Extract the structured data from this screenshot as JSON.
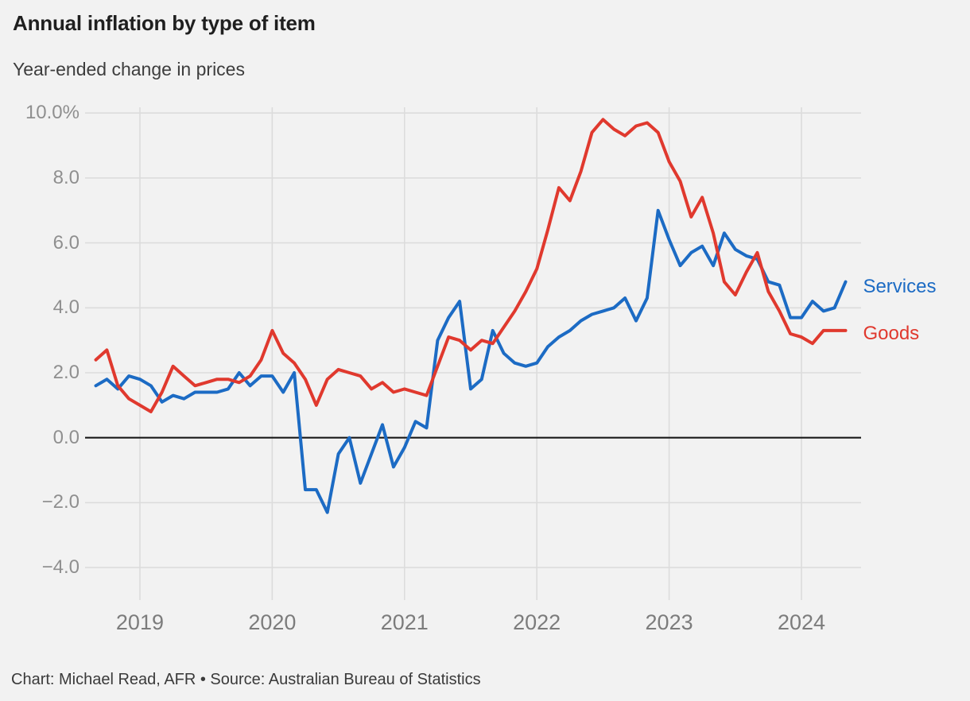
{
  "header": {
    "title": "Annual inflation by type of item",
    "subtitle": "Year-ended change in prices"
  },
  "footer": {
    "credit": "Chart: Michael Read, AFR • Source: Australian Bureau of Statistics"
  },
  "colors": {
    "background": "#f2f2f2",
    "grid": "#dcdcdc",
    "zero_line": "#1a1a1a",
    "services": "#1c6bc4",
    "goods": "#e0392e",
    "axis_text": "#8f8f8f"
  },
  "chart_data": {
    "type": "line",
    "title": "Annual inflation by type of item",
    "subtitle": "Year-ended change in prices",
    "x_unit": "month",
    "x_start": "2018-09",
    "x_end": "2024-05",
    "grid": true,
    "zero_line": true,
    "legend_position": "right-of-line-ends",
    "ylim": [
      -5,
      10
    ],
    "ytick_values": [
      10,
      8,
      6,
      4,
      2,
      0,
      -2,
      -4
    ],
    "ytick_labels": [
      "10.0%",
      "8.0",
      "6.0",
      "4.0",
      "2.0",
      "0.0",
      "−2.0",
      "−4.0"
    ],
    "xtick_labels": [
      "2019",
      "2020",
      "2021",
      "2022",
      "2023",
      "2024"
    ],
    "series": [
      {
        "name": "Services",
        "color": "#1c6bc4",
        "values": [
          1.6,
          1.8,
          1.5,
          1.9,
          1.8,
          1.6,
          1.1,
          1.3,
          1.2,
          1.4,
          1.4,
          1.4,
          1.5,
          2.0,
          1.6,
          1.9,
          1.9,
          1.4,
          2.0,
          -1.6,
          -1.6,
          -2.3,
          -0.5,
          0.0,
          -1.4,
          -0.5,
          0.4,
          -0.9,
          -0.3,
          0.5,
          0.3,
          3.0,
          3.7,
          4.2,
          1.5,
          1.8,
          3.3,
          2.6,
          2.3,
          2.2,
          2.3,
          2.8,
          3.1,
          3.3,
          3.6,
          3.8,
          3.9,
          4.0,
          4.3,
          3.6,
          4.3,
          7.0,
          6.1,
          5.3,
          5.7,
          5.9,
          5.3,
          6.3,
          5.8,
          5.6,
          5.5,
          4.8,
          4.7,
          3.7,
          3.7,
          4.2,
          3.9,
          4.0,
          4.8
        ]
      },
      {
        "name": "Goods",
        "color": "#e0392e",
        "values": [
          2.4,
          2.7,
          1.6,
          1.2,
          1.0,
          0.8,
          1.4,
          2.2,
          1.9,
          1.6,
          1.7,
          1.8,
          1.8,
          1.7,
          1.9,
          2.4,
          3.3,
          2.6,
          2.3,
          1.8,
          1.0,
          1.8,
          2.1,
          2.0,
          1.9,
          1.5,
          1.7,
          1.4,
          1.5,
          1.4,
          1.3,
          2.2,
          3.1,
          3.0,
          2.7,
          3.0,
          2.9,
          3.4,
          3.9,
          4.5,
          5.2,
          6.4,
          7.7,
          7.3,
          8.2,
          9.4,
          9.8,
          9.5,
          9.3,
          9.6,
          9.7,
          9.4,
          8.5,
          7.9,
          6.8,
          7.4,
          6.3,
          4.8,
          4.4,
          5.1,
          5.7,
          4.5,
          3.9,
          3.2,
          3.1,
          2.9,
          3.3,
          3.3,
          3.3
        ]
      }
    ]
  }
}
